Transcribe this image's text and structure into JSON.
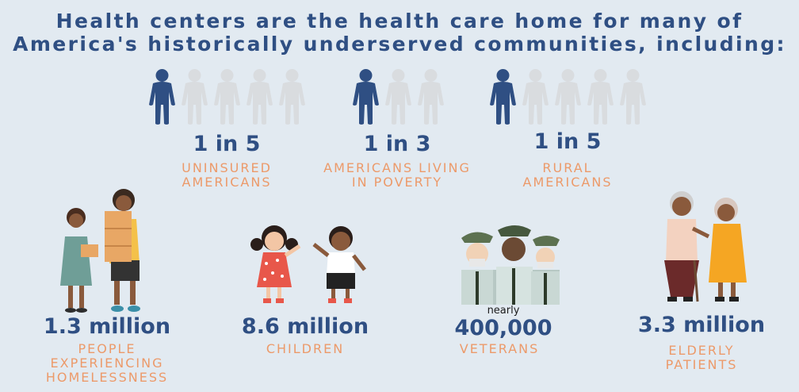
{
  "title": {
    "line1": "Health centers are the health care home for many of",
    "line2": "America's historically underserved communities, including:"
  },
  "colors": {
    "navy": "#2f4f83",
    "orange": "#ec9a6a",
    "grey_figure": "#d9dcdf",
    "background": "#e2eaf1"
  },
  "ratios": [
    {
      "value": "1 in 5",
      "label_line1": "UNINSURED",
      "label_line2": "AMERICANS",
      "filled": 1,
      "total": 5
    },
    {
      "value": "1 in 3",
      "label_line1": "AMERICANS LIVING",
      "label_line2": "IN POVERTY",
      "filled": 1,
      "total": 3
    },
    {
      "value": "1 in 5",
      "label_line1": "RURAL",
      "label_line2": "AMERICANS",
      "filled": 1,
      "total": 5
    }
  ],
  "groups": [
    {
      "value": "1.3 million",
      "label": [
        "PEOPLE",
        "EXPERIENCING",
        "HOMELESSNESS"
      ]
    },
    {
      "value": "8.6 million",
      "label": [
        "CHILDREN"
      ]
    },
    {
      "prefix": "nearly",
      "value": "400,000",
      "label": [
        "VETERANS"
      ]
    },
    {
      "value": "3.3 million",
      "label": [
        "ELDERLY",
        "PATIENTS"
      ]
    }
  ]
}
